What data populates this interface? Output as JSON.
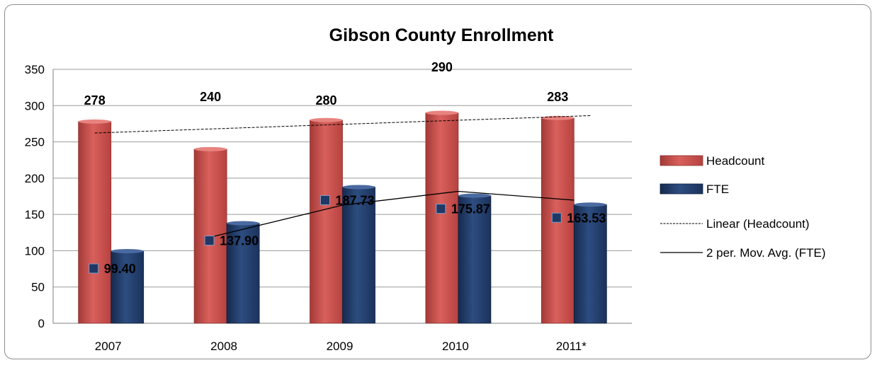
{
  "chart_data": {
    "type": "bar",
    "title": "Gibson County Enrollment",
    "categories": [
      "2007",
      "2008",
      "2009",
      "2010",
      "2011*"
    ],
    "series": [
      {
        "name": "Headcount",
        "values": [
          278,
          240,
          280,
          290,
          283
        ],
        "color": "#c0504d",
        "labels": [
          "278",
          "240",
          "280",
          "290",
          "283"
        ]
      },
      {
        "name": "FTE",
        "values": [
          99.4,
          137.9,
          187.73,
          175.87,
          163.53
        ],
        "color": "#1f3864",
        "labels": [
          "99.40",
          "137.90",
          "187.73",
          "175.87",
          "163.53"
        ]
      }
    ],
    "trendlines": [
      {
        "name": "Linear (Headcount)",
        "kind": "linear",
        "of": "Headcount",
        "style": "dashed"
      },
      {
        "name": "2 per. Mov. Avg. (FTE)",
        "kind": "moving-average",
        "period": 2,
        "of": "FTE",
        "style": "solid"
      }
    ],
    "ylim": [
      0,
      350
    ],
    "yticks": [
      "0",
      "50",
      "100",
      "150",
      "200",
      "250",
      "300",
      "350"
    ],
    "grid": true,
    "legend": "right"
  }
}
